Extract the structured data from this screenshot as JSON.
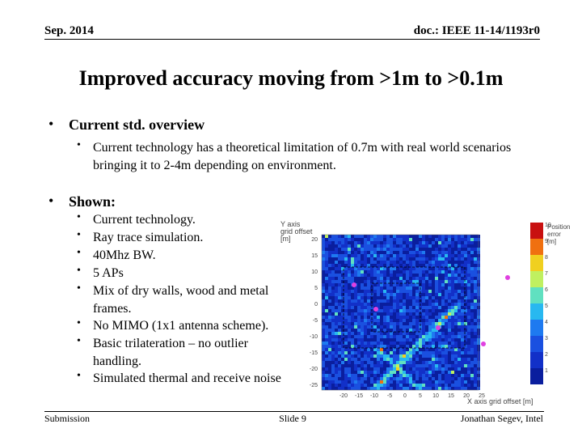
{
  "header": {
    "date": "Sep. 2014",
    "doc": "doc.: IEEE 11-14/1193r0"
  },
  "title": "Improved accuracy moving from >1m to >0.1m",
  "bullets": [
    {
      "text": "Current std. overview",
      "sub": [
        "Current technology has a theoretical limitation of 0.7m with real world scenarios bringing it to 2-4m depending on environment."
      ]
    },
    {
      "text": "Shown:",
      "sub": [
        "Current technology.",
        "Ray trace simulation.",
        "40Mhz BW.",
        "5 APs",
        "Mix of dry walls, wood and metal frames.",
        "No MIMO (1x1 antenna scheme).",
        "Basic trilateration – no outlier handling.",
        "Simulated thermal and receive noise"
      ]
    }
  ],
  "figure": {
    "y_label": [
      "Y axis",
      "grid offset",
      "[m]"
    ],
    "x_label": "X axis grid offset [m]",
    "colorbar_label": [
      "Position",
      "error",
      "[m]"
    ],
    "yticks": [
      "20",
      "15",
      "10",
      "5",
      "0",
      "-5",
      "-10",
      "-15",
      "-20",
      "-25"
    ],
    "xticks": [
      "-20",
      "-15",
      "-10",
      "-5",
      "0",
      "5",
      "10",
      "15",
      "20",
      "25"
    ],
    "cticks": [
      "10",
      "9",
      "8",
      "7",
      "6",
      "5",
      "4",
      "3",
      "2",
      "1"
    ]
  },
  "footer": {
    "left": "Submission",
    "center": "Slide 9",
    "right": "Jonathan Segev, Intel"
  }
}
